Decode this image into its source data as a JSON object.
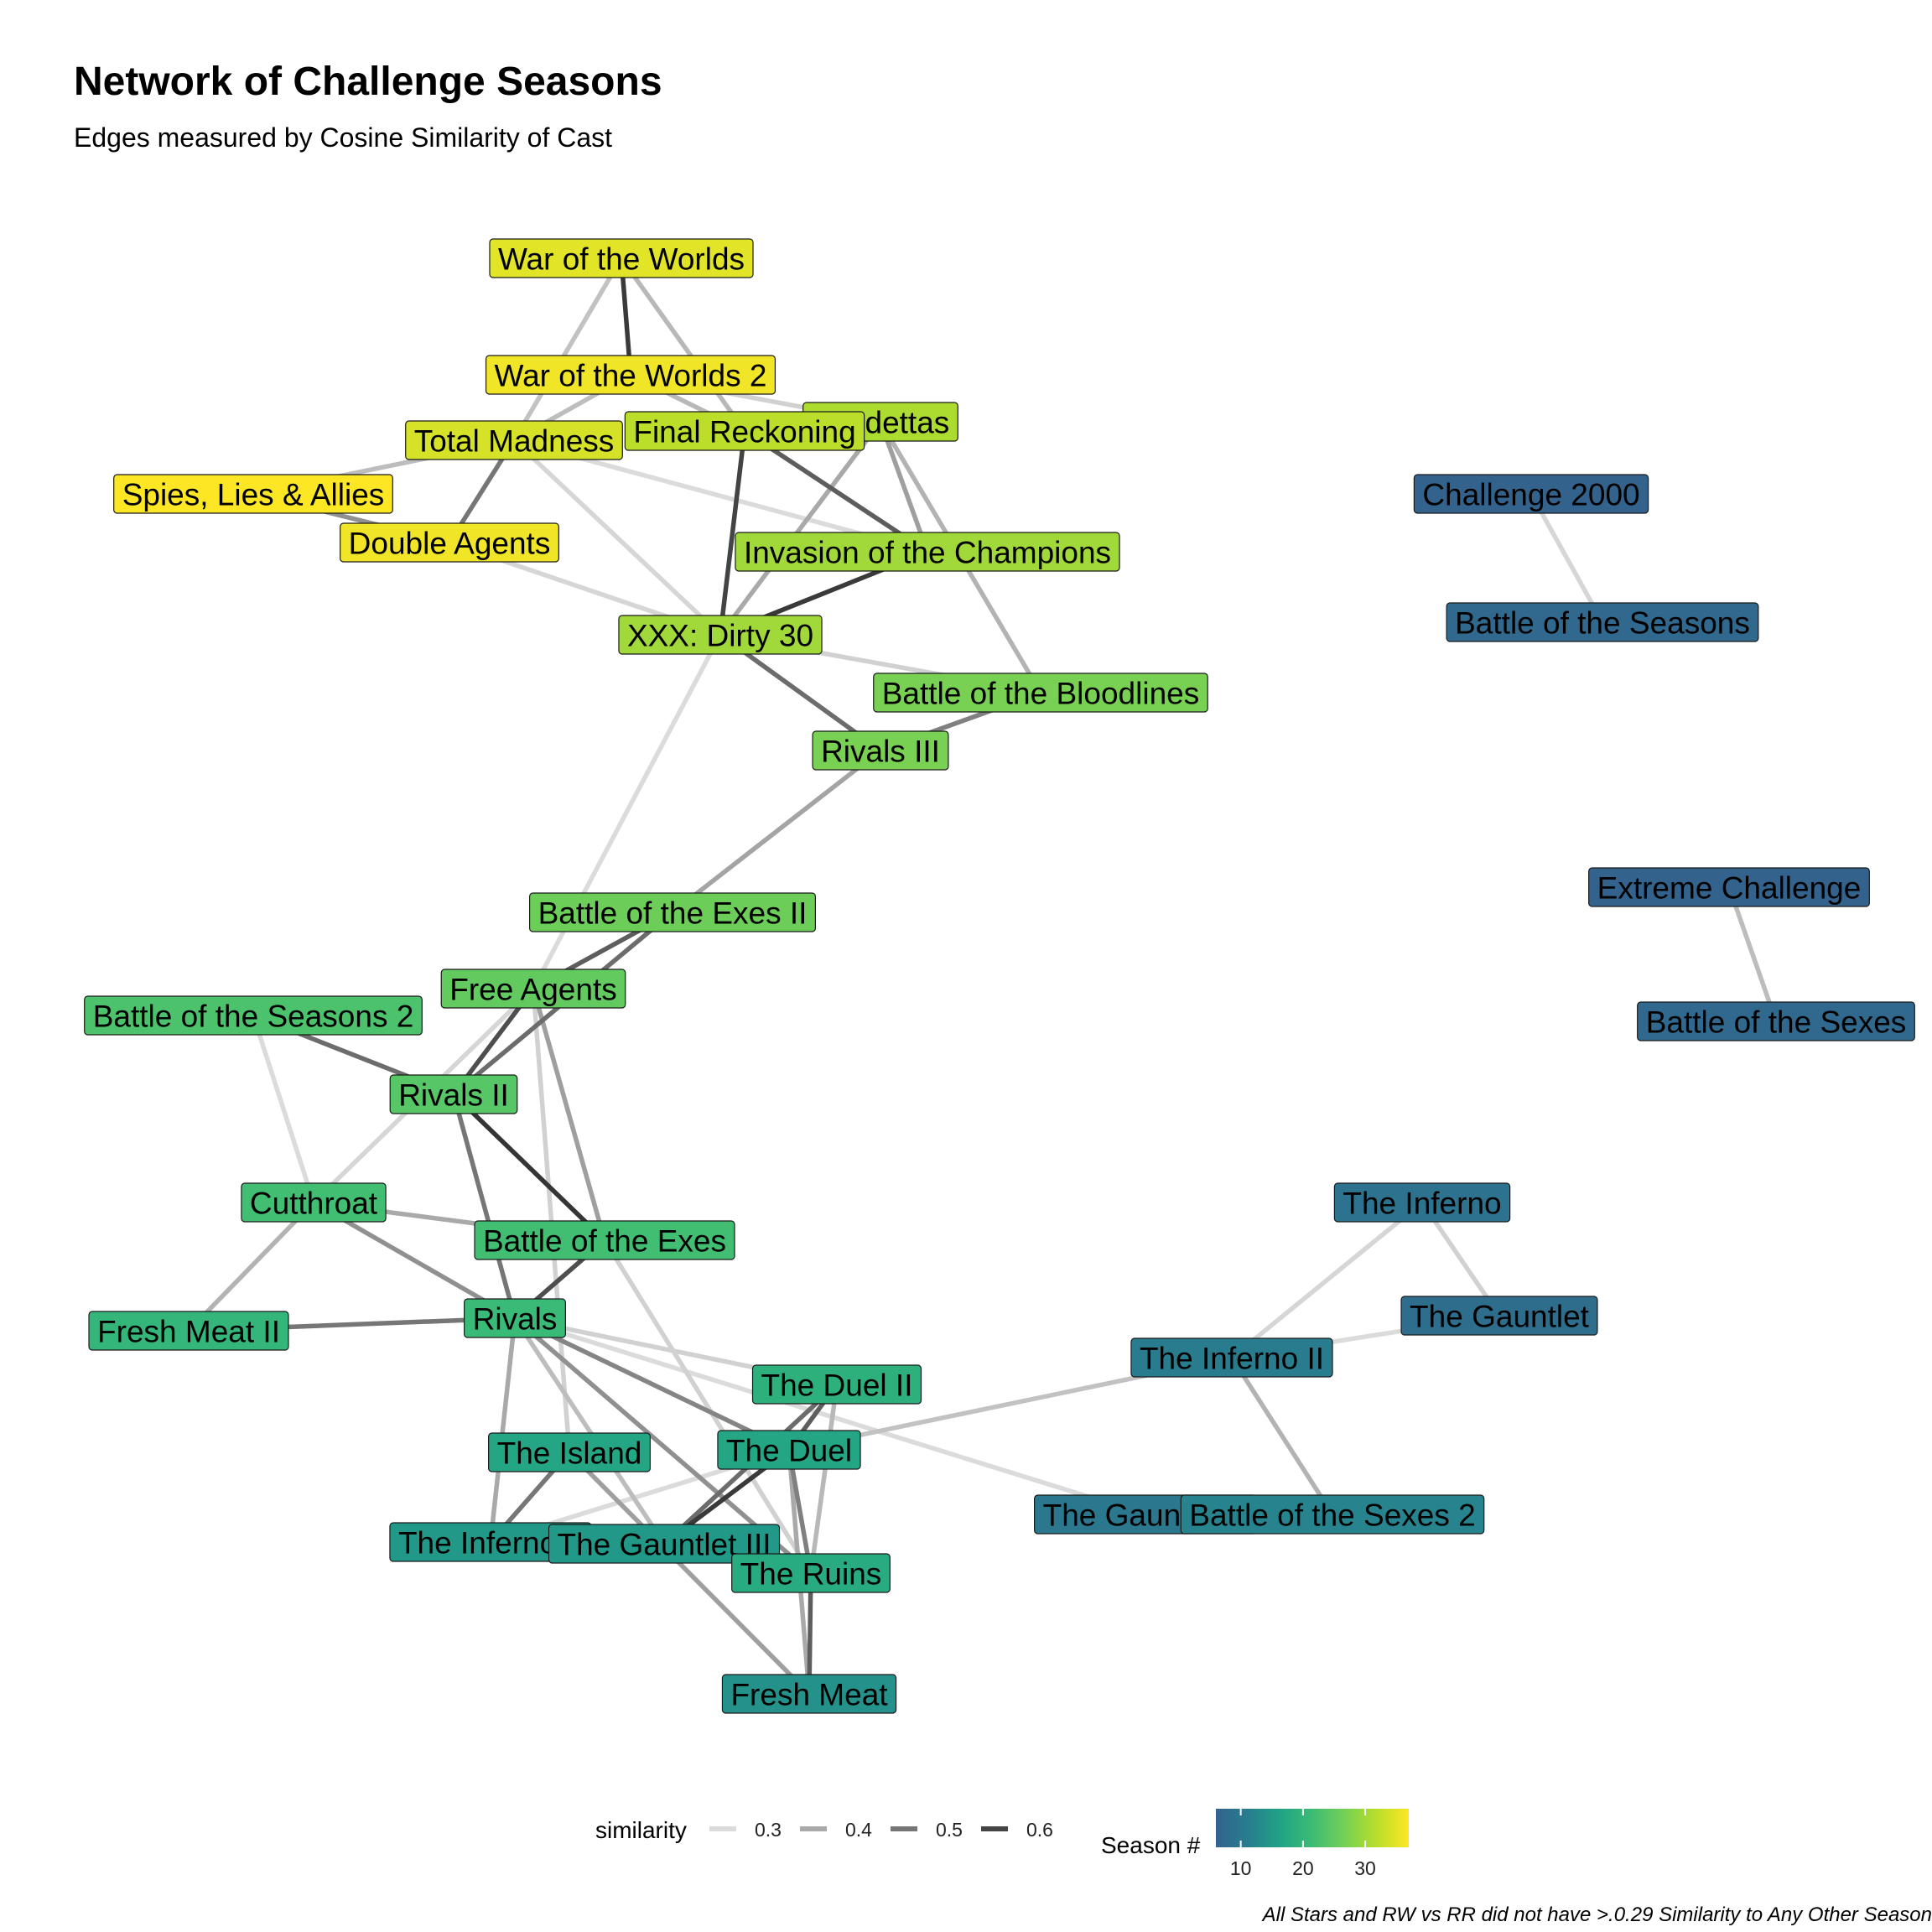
{
  "chart_data": {
    "type": "network",
    "title": "Network of Challenge Seasons",
    "subtitle": "Edges measured by Cosine Similarity of Cast",
    "caption": "All Stars and RW vs RR did not have >.0.29 Similarity to Any Other Season",
    "nodes": [
      {
        "id": "wotw",
        "label": "War of the Worlds",
        "season": 35
      },
      {
        "id": "wotw2",
        "label": "War of the Worlds 2",
        "season": 36
      },
      {
        "id": "vendettas",
        "label": "Vendettas",
        "season": 31
      },
      {
        "id": "fr",
        "label": "Final Reckoning",
        "season": 32
      },
      {
        "id": "tm",
        "label": "Total Madness",
        "season": 34
      },
      {
        "id": "sla",
        "label": "Spies, Lies & Allies",
        "season": 37
      },
      {
        "id": "da",
        "label": "Double Agents",
        "season": 36
      },
      {
        "id": "iotc",
        "label": "Invasion of the Champions",
        "season": 30
      },
      {
        "id": "xxx",
        "label": "XXX: Dirty 30",
        "season": 30
      },
      {
        "id": "botb",
        "label": "Battle of the Bloodlines",
        "season": 27
      },
      {
        "id": "r3",
        "label": "Rivals III",
        "season": 27
      },
      {
        "id": "c2000",
        "label": "Challenge 2000",
        "season": 6
      },
      {
        "id": "bots",
        "label": "Battle of the Seasons",
        "season": 7
      },
      {
        "id": "boe2",
        "label": "Battle of the Exes II",
        "season": 26
      },
      {
        "id": "fa",
        "label": "Free Agents",
        "season": 25
      },
      {
        "id": "bots2",
        "label": "Battle of the Seasons 2",
        "season": 23
      },
      {
        "id": "r2",
        "label": "Rivals II",
        "season": 24
      },
      {
        "id": "ec",
        "label": "Extreme Challenge",
        "season": 6
      },
      {
        "id": "bosx",
        "label": "Battle of the Sexes",
        "season": 7
      },
      {
        "id": "ct",
        "label": "Cutthroat",
        "season": 22
      },
      {
        "id": "boe",
        "label": "Battle of the Exes",
        "season": 22
      },
      {
        "id": "fm2",
        "label": "Fresh Meat II",
        "season": 20
      },
      {
        "id": "rivals",
        "label": "Rivals",
        "season": 21
      },
      {
        "id": "inferno",
        "label": "The Inferno",
        "season": 9
      },
      {
        "id": "gauntlet",
        "label": "The Gauntlet",
        "season": 8
      },
      {
        "id": "inferno2",
        "label": "The Inferno II",
        "season": 11
      },
      {
        "id": "duel2",
        "label": "The Duel II",
        "season": 19
      },
      {
        "id": "island",
        "label": "The Island",
        "season": 17
      },
      {
        "id": "duel",
        "label": "The Duel",
        "season": 17
      },
      {
        "id": "gauntlet2",
        "label": "The Gauntlet 2",
        "season": 10
      },
      {
        "id": "bosx2",
        "label": "Battle of the Sexes 2",
        "season": 12
      },
      {
        "id": "inferno3",
        "label": "The Inferno 3",
        "season": 15
      },
      {
        "id": "gauntlet3",
        "label": "The Gauntlet III",
        "season": 15
      },
      {
        "id": "ruins",
        "label": "The Ruins",
        "season": 18
      },
      {
        "id": "fm",
        "label": "Fresh Meat",
        "season": 14
      }
    ],
    "edges": [
      {
        "source": "wotw",
        "target": "wotw2",
        "similarity": 0.62
      },
      {
        "source": "wotw",
        "target": "tm",
        "similarity": 0.35
      },
      {
        "source": "wotw",
        "target": "fr",
        "similarity": 0.37
      },
      {
        "source": "wotw2",
        "target": "tm",
        "similarity": 0.36
      },
      {
        "source": "wotw2",
        "target": "fr",
        "similarity": 0.37
      },
      {
        "source": "wotw2",
        "target": "vendettas",
        "similarity": 0.32
      },
      {
        "source": "tm",
        "target": "sla",
        "similarity": 0.36
      },
      {
        "source": "tm",
        "target": "da",
        "similarity": 0.5
      },
      {
        "source": "tm",
        "target": "xxx",
        "similarity": 0.31
      },
      {
        "source": "tm",
        "target": "iotc",
        "similarity": 0.3
      },
      {
        "source": "sla",
        "target": "da",
        "similarity": 0.45
      },
      {
        "source": "da",
        "target": "xxx",
        "similarity": 0.31
      },
      {
        "source": "fr",
        "target": "xxx",
        "similarity": 0.6
      },
      {
        "source": "fr",
        "target": "iotc",
        "similarity": 0.55
      },
      {
        "source": "vendettas",
        "target": "iotc",
        "similarity": 0.42
      },
      {
        "source": "vendettas",
        "target": "xxx",
        "similarity": 0.4
      },
      {
        "source": "vendettas",
        "target": "botb",
        "similarity": 0.38
      },
      {
        "source": "iotc",
        "target": "xxx",
        "similarity": 0.62
      },
      {
        "source": "xxx",
        "target": "r3",
        "similarity": 0.52
      },
      {
        "source": "xxx",
        "target": "botb",
        "similarity": 0.32
      },
      {
        "source": "xxx",
        "target": "fa",
        "similarity": 0.3
      },
      {
        "source": "botb",
        "target": "r3",
        "similarity": 0.48
      },
      {
        "source": "r3",
        "target": "boe2",
        "similarity": 0.41
      },
      {
        "source": "c2000",
        "target": "bots",
        "similarity": 0.31
      },
      {
        "source": "boe2",
        "target": "fa",
        "similarity": 0.55
      },
      {
        "source": "boe2",
        "target": "r2",
        "similarity": 0.52
      },
      {
        "source": "fa",
        "target": "r2",
        "similarity": 0.58
      },
      {
        "source": "fa",
        "target": "boe",
        "similarity": 0.42
      },
      {
        "source": "fa",
        "target": "island",
        "similarity": 0.32
      },
      {
        "source": "fa",
        "target": "ct",
        "similarity": 0.31
      },
      {
        "source": "bots2",
        "target": "r2",
        "similarity": 0.52
      },
      {
        "source": "bots2",
        "target": "ct",
        "similarity": 0.3
      },
      {
        "source": "r2",
        "target": "boe",
        "similarity": 0.63
      },
      {
        "source": "r2",
        "target": "rivals",
        "similarity": 0.5
      },
      {
        "source": "ec",
        "target": "bosx",
        "similarity": 0.36
      },
      {
        "source": "ct",
        "target": "boe",
        "similarity": 0.4
      },
      {
        "source": "ct",
        "target": "rivals",
        "similarity": 0.45
      },
      {
        "source": "ct",
        "target": "fm2",
        "similarity": 0.38
      },
      {
        "source": "fm2",
        "target": "rivals",
        "similarity": 0.5
      },
      {
        "source": "boe",
        "target": "rivals",
        "similarity": 0.58
      },
      {
        "source": "boe",
        "target": "ruins",
        "similarity": 0.32
      },
      {
        "source": "rivals",
        "target": "duel2",
        "similarity": 0.32
      },
      {
        "source": "rivals",
        "target": "duel",
        "similarity": 0.47
      },
      {
        "source": "rivals",
        "target": "inferno3",
        "similarity": 0.4
      },
      {
        "source": "rivals",
        "target": "gauntlet3",
        "similarity": 0.36
      },
      {
        "source": "rivals",
        "target": "gauntlet2",
        "similarity": 0.3
      },
      {
        "source": "rivals",
        "target": "ruins",
        "similarity": 0.45
      },
      {
        "source": "inferno",
        "target": "inferno2",
        "similarity": 0.31
      },
      {
        "source": "inferno",
        "target": "gauntlet",
        "similarity": 0.32
      },
      {
        "source": "gauntlet",
        "target": "inferno2",
        "similarity": 0.3
      },
      {
        "source": "inferno2",
        "target": "duel",
        "similarity": 0.35
      },
      {
        "source": "inferno2",
        "target": "bosx2",
        "similarity": 0.38
      },
      {
        "source": "duel2",
        "target": "duel",
        "similarity": 0.55
      },
      {
        "source": "duel2",
        "target": "gauntlet3",
        "similarity": 0.52
      },
      {
        "source": "duel2",
        "target": "ruins",
        "similarity": 0.37
      },
      {
        "source": "island",
        "target": "inferno3",
        "similarity": 0.5
      },
      {
        "source": "island",
        "target": "fm",
        "similarity": 0.42
      },
      {
        "source": "duel",
        "target": "gauntlet3",
        "similarity": 0.62
      },
      {
        "source": "duel",
        "target": "ruins",
        "similarity": 0.48
      },
      {
        "source": "duel",
        "target": "fm",
        "similarity": 0.4
      },
      {
        "source": "duel",
        "target": "inferno3",
        "similarity": 0.3
      },
      {
        "source": "gauntlet3",
        "target": "ruins",
        "similarity": 0.45
      },
      {
        "source": "ruins",
        "target": "fm",
        "similarity": 0.55
      }
    ],
    "legend": {
      "similarity_title": "similarity",
      "similarity_breaks": [
        "0.3",
        "0.4",
        "0.5",
        "0.6"
      ],
      "season_title": "Season #",
      "season_breaks": [
        "10",
        "20",
        "30"
      ],
      "season_range": [
        6,
        37
      ],
      "season_colors": [
        "#33638d",
        "#287d8e",
        "#20a386",
        "#3cbc75",
        "#74d055",
        "#b8de29",
        "#fde725"
      ]
    }
  }
}
